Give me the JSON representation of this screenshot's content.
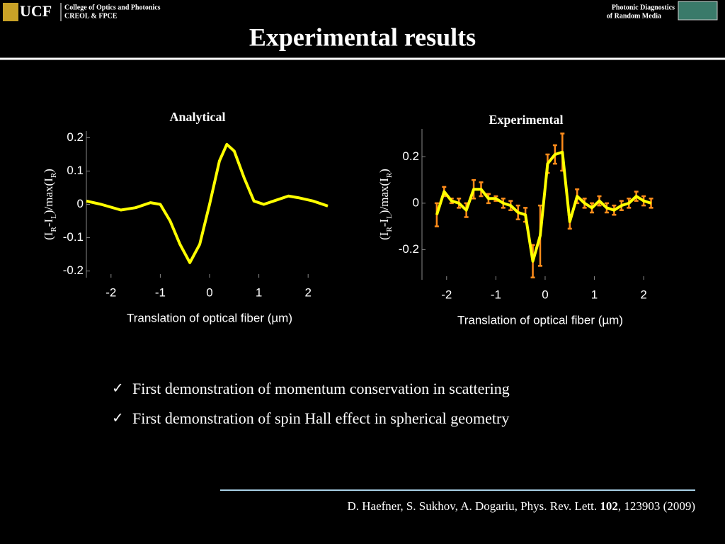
{
  "header": {
    "logo": "UCF",
    "college": "College of Optics and Photonics",
    "dept": "CREOL & FPCE",
    "right_line1": "Photonic  Diagnostics",
    "right_line2": "of Random Media",
    "title": "Experimental results"
  },
  "chart_data": [
    {
      "type": "line",
      "title": "Analytical",
      "x_label": "Translation of optical fiber (µm)",
      "y_label": [
        "(I",
        "R",
        "-I",
        "L",
        ")/max(I",
        "R",
        ")"
      ],
      "x": [
        -2.5,
        -2.2,
        -1.8,
        -1.5,
        -1.2,
        -1.0,
        -0.8,
        -0.6,
        -0.4,
        -0.2,
        0,
        0.2,
        0.35,
        0.5,
        0.7,
        0.9,
        1.1,
        1.3,
        1.6,
        1.8,
        2.1,
        2.4
      ],
      "values": [
        0.01,
        0.0,
        -0.017,
        -0.01,
        0.005,
        0.0,
        -0.05,
        -0.12,
        -0.175,
        -0.12,
        0.0,
        0.13,
        0.18,
        0.16,
        0.08,
        0.01,
        0.0,
        0.01,
        0.025,
        0.02,
        0.01,
        -0.005
      ],
      "color": "#ffff00",
      "xlim": [
        -2.5,
        2.5
      ],
      "xticks": [
        -2,
        -1,
        0,
        1,
        2
      ],
      "ylim": [
        -0.22,
        0.22
      ],
      "yticks": [
        -0.2,
        -0.1,
        0,
        0.1,
        0.2
      ]
    },
    {
      "type": "errorline",
      "title": "Experimental",
      "x_label": "Translation of optical fiber (µm)",
      "y_label": [
        "(I",
        "R",
        "-I",
        "L",
        ")/max(I",
        "R",
        ")"
      ],
      "x": [
        -2.2,
        -2.05,
        -1.9,
        -1.75,
        -1.6,
        -1.45,
        -1.3,
        -1.15,
        -1.0,
        -0.85,
        -0.7,
        -0.55,
        -0.4,
        -0.25,
        -0.1,
        0.05,
        0.2,
        0.35,
        0.5,
        0.65,
        0.8,
        0.95,
        1.1,
        1.25,
        1.4,
        1.55,
        1.7,
        1.85,
        2.0,
        2.15
      ],
      "values": [
        -0.05,
        0.05,
        0.01,
        0.0,
        -0.03,
        0.06,
        0.06,
        0.02,
        0.02,
        0.0,
        -0.01,
        -0.04,
        -0.05,
        -0.25,
        -0.14,
        0.17,
        0.21,
        0.22,
        -0.08,
        0.03,
        0.0,
        -0.02,
        0.01,
        -0.02,
        -0.03,
        -0.01,
        0.0,
        0.03,
        0.01,
        0.0
      ],
      "errors": [
        0.05,
        0.02,
        0.01,
        0.02,
        0.03,
        0.04,
        0.03,
        0.02,
        0.01,
        0.02,
        0.02,
        0.03,
        0.03,
        0.07,
        0.13,
        0.04,
        0.04,
        0.08,
        0.03,
        0.03,
        0.02,
        0.02,
        0.02,
        0.02,
        0.02,
        0.02,
        0.02,
        0.02,
        0.02,
        0.02
      ],
      "color": "#ffff00",
      "error_color": "#ff8c1a",
      "xlim": [
        -2.5,
        2.3
      ],
      "xticks": [
        -2,
        -1,
        0,
        1,
        2
      ],
      "ylim": [
        -0.33,
        0.32
      ],
      "yticks": [
        -0.2,
        0,
        0.2
      ]
    }
  ],
  "bullets": [
    "First demonstration of momentum conservation in scattering",
    "First demonstration of spin Hall effect in spherical geometry"
  ],
  "citation": {
    "authors": "D. Haefner, S. Sukhov, A. Dogariu, Phys. Rev. Lett. ",
    "volume": "102",
    "rest": ", 123903 (2009)"
  }
}
